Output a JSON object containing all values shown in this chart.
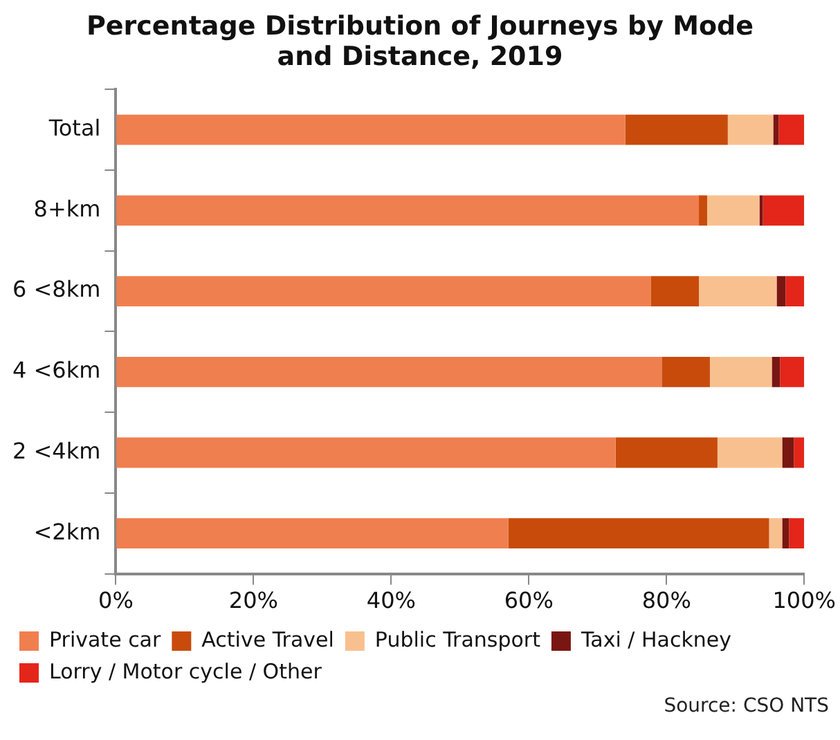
{
  "chart_data": {
    "type": "bar",
    "orientation": "horizontal",
    "stacked": true,
    "title": "Percentage Distribution of Journeys by Mode and Distance, 2019",
    "categories": [
      "Total",
      "8+km",
      "6 <8km",
      "4 <6km",
      "2 <4km",
      "<2km"
    ],
    "series": [
      {
        "name": "Private car",
        "color": "#f07f4f",
        "values": [
          74.0,
          84.7,
          77.7,
          79.3,
          72.6,
          57.0
        ]
      },
      {
        "name": "Active Travel",
        "color": "#c84b0c",
        "values": [
          14.9,
          1.2,
          7.0,
          7.0,
          14.8,
          37.9
        ]
      },
      {
        "name": "Public Transport",
        "color": "#f8c08f",
        "values": [
          6.6,
          7.6,
          11.3,
          9.0,
          9.4,
          1.9
        ]
      },
      {
        "name": "Taxi / Hackney",
        "color": "#7a1612",
        "values": [
          0.8,
          0.5,
          1.3,
          1.2,
          1.7,
          1.0
        ]
      },
      {
        "name": "Lorry / Motor cycle / Other",
        "color": "#e32619",
        "values": [
          3.7,
          6.0,
          2.7,
          3.5,
          1.5,
          2.2
        ]
      }
    ],
    "xlim": [
      0,
      100
    ],
    "xticks": [
      {
        "value": 0,
        "label": "0%"
      },
      {
        "value": 20,
        "label": "20%"
      },
      {
        "value": 40,
        "label": "40%"
      },
      {
        "value": 60,
        "label": "60%"
      },
      {
        "value": 80,
        "label": "80%"
      },
      {
        "value": 100,
        "label": "100%"
      }
    ],
    "grid": false,
    "legend": "bottom",
    "annotations": [
      "Source: CSO NTS"
    ]
  }
}
